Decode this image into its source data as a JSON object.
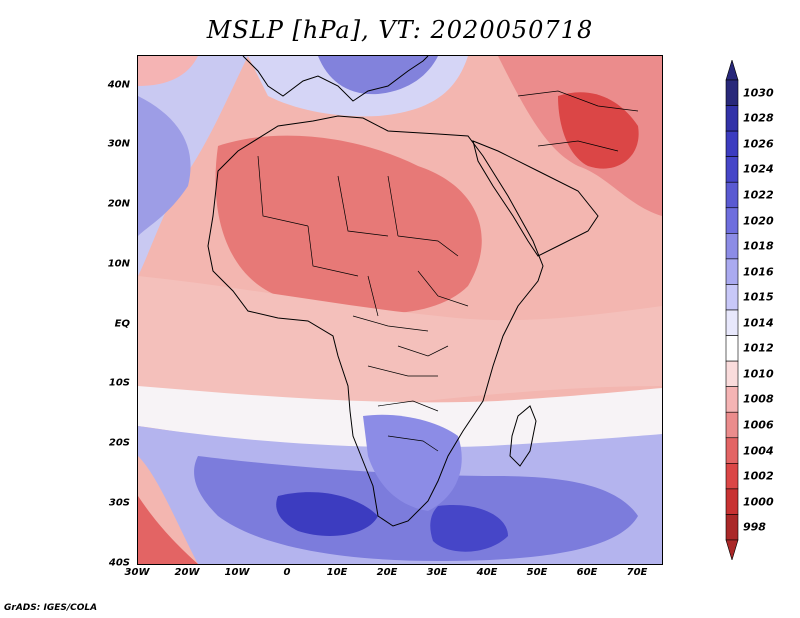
{
  "title": "MSLP [hPa], VT: 2020050718",
  "footer": "GrADS: IGES/COLA",
  "map": {
    "variable": "Mean sea level pressure",
    "units": "hPa",
    "valid_time": "2020050718",
    "region": "Africa",
    "lon_range": [
      "30W",
      "75E"
    ],
    "lat_range": [
      "40S",
      "45N"
    ],
    "lat_ticks": [
      "40N",
      "30N",
      "20N",
      "10N",
      "EQ",
      "10S",
      "20S",
      "30S",
      "40S"
    ],
    "lon_ticks": [
      "30W",
      "20W",
      "10W",
      "0",
      "10E",
      "20E",
      "30E",
      "40E",
      "50E",
      "60E",
      "70E"
    ]
  },
  "colorbar": {
    "levels": [
      "1030",
      "1028",
      "1026",
      "1024",
      "1022",
      "1020",
      "1018",
      "1016",
      "1015",
      "1014",
      "1012",
      "1010",
      "1008",
      "1006",
      "1004",
      "1002",
      "1000",
      "998"
    ],
    "colors": [
      "#28287a",
      "#3232a8",
      "#3c3cc0",
      "#4646c8",
      "#5a5ad2",
      "#6e6ede",
      "#8c8ce6",
      "#aaaaf0",
      "#c8c8f8",
      "#e8e8fc",
      "#ffffff",
      "#fadcdc",
      "#f5b4b4",
      "#eb8c8c",
      "#e36464",
      "#db4646",
      "#c83232",
      "#aa2828"
    ]
  }
}
